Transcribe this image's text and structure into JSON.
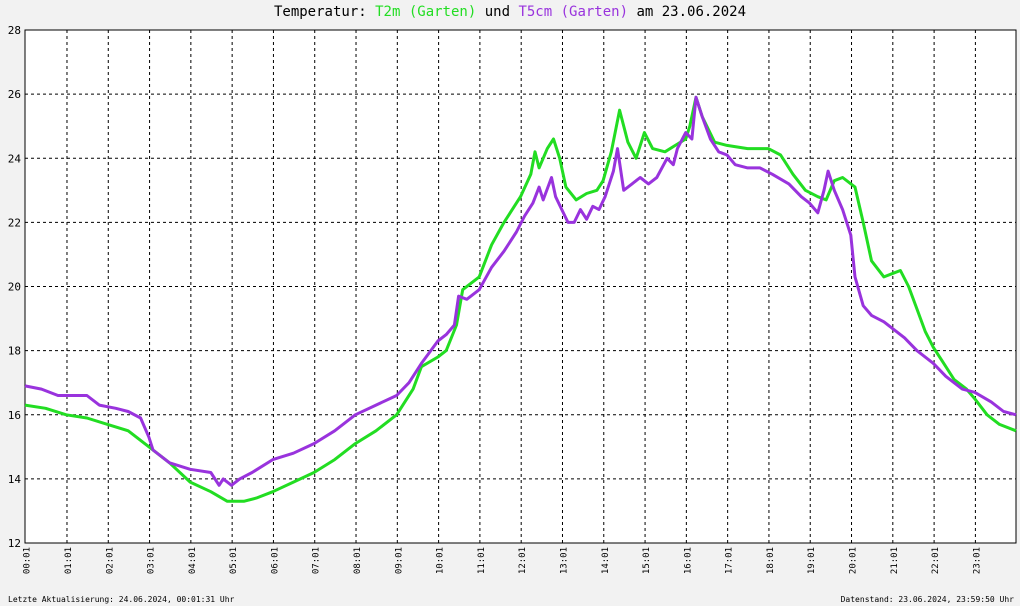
{
  "title": {
    "prefix": "Temperatur: ",
    "series1": "T2m (Garten)",
    "mid": " und ",
    "series2": "T5cm (Garten)",
    "suffix": " am 23.06.2024"
  },
  "footer": {
    "left": "Letzte Aktualisierung: 24.06.2024, 00:01:31 Uhr",
    "right": "Datenstand: 23.06.2024, 23:59:50 Uhr"
  },
  "colors": {
    "t2m": "#22dd22",
    "t5cm": "#9933dd",
    "grid": "#000000",
    "background": "#ffffff"
  },
  "chart_data": {
    "type": "line",
    "title": "Temperatur: T2m (Garten) und T5cm (Garten) am 23.06.2024",
    "xlim": [
      0,
      24
    ],
    "ylim": [
      12,
      28
    ],
    "y_ticks": [
      12,
      14,
      16,
      18,
      20,
      22,
      24,
      26,
      28
    ],
    "x_ticks": [
      0.0167,
      1.0167,
      2.0167,
      3.0167,
      4.0167,
      5.0167,
      6.0167,
      7.0167,
      8.0167,
      9.0167,
      10.0167,
      11.0167,
      12.0167,
      13.0167,
      14.0167,
      15.0167,
      16.0167,
      17.0167,
      18.0167,
      19.0167,
      20.0167,
      21.0167,
      22.0167,
      23.0167
    ],
    "x_tick_labels": [
      "00:01",
      "01:01",
      "02:01",
      "03:01",
      "04:01",
      "05:01",
      "06:01",
      "07:01",
      "08:01",
      "09:01",
      "10:01",
      "11:01",
      "12:01",
      "13:01",
      "14:01",
      "15:01",
      "16:01",
      "17:01",
      "18:01",
      "19:01",
      "20:01",
      "21:01",
      "22:01",
      "23:01"
    ],
    "grid": true,
    "series": [
      {
        "name": "T2m (Garten)",
        "color": "#22dd22",
        "points": [
          [
            0.0,
            16.3
          ],
          [
            0.5,
            16.2
          ],
          [
            1.0,
            16.0
          ],
          [
            1.5,
            15.9
          ],
          [
            2.0,
            15.7
          ],
          [
            2.5,
            15.5
          ],
          [
            3.0,
            15.0
          ],
          [
            3.5,
            14.5
          ],
          [
            4.0,
            13.9
          ],
          [
            4.5,
            13.6
          ],
          [
            4.9,
            13.3
          ],
          [
            5.3,
            13.3
          ],
          [
            5.6,
            13.4
          ],
          [
            6.0,
            13.6
          ],
          [
            6.5,
            13.9
          ],
          [
            7.0,
            14.2
          ],
          [
            7.5,
            14.6
          ],
          [
            8.0,
            15.1
          ],
          [
            8.5,
            15.5
          ],
          [
            9.0,
            16.0
          ],
          [
            9.4,
            16.8
          ],
          [
            9.6,
            17.5
          ],
          [
            10.0,
            17.8
          ],
          [
            10.2,
            18.0
          ],
          [
            10.45,
            18.8
          ],
          [
            10.6,
            19.9
          ],
          [
            11.0,
            20.3
          ],
          [
            11.3,
            21.3
          ],
          [
            11.6,
            22.0
          ],
          [
            12.0,
            22.8
          ],
          [
            12.25,
            23.5
          ],
          [
            12.35,
            24.2
          ],
          [
            12.45,
            23.7
          ],
          [
            12.65,
            24.3
          ],
          [
            12.8,
            24.6
          ],
          [
            12.95,
            24.0
          ],
          [
            13.1,
            23.1
          ],
          [
            13.35,
            22.7
          ],
          [
            13.6,
            22.9
          ],
          [
            13.85,
            23.0
          ],
          [
            14.0,
            23.3
          ],
          [
            14.2,
            24.2
          ],
          [
            14.4,
            25.5
          ],
          [
            14.6,
            24.5
          ],
          [
            14.8,
            24.0
          ],
          [
            15.0,
            24.8
          ],
          [
            15.2,
            24.3
          ],
          [
            15.5,
            24.2
          ],
          [
            15.75,
            24.4
          ],
          [
            16.0,
            24.6
          ],
          [
            16.1,
            25.0
          ],
          [
            16.25,
            25.9
          ],
          [
            16.4,
            25.3
          ],
          [
            16.7,
            24.5
          ],
          [
            17.0,
            24.4
          ],
          [
            17.5,
            24.3
          ],
          [
            18.0,
            24.3
          ],
          [
            18.3,
            24.1
          ],
          [
            18.6,
            23.5
          ],
          [
            18.9,
            23.0
          ],
          [
            19.2,
            22.8
          ],
          [
            19.4,
            22.7
          ],
          [
            19.6,
            23.3
          ],
          [
            19.8,
            23.4
          ],
          [
            20.1,
            23.1
          ],
          [
            20.3,
            22.0
          ],
          [
            20.5,
            20.8
          ],
          [
            20.8,
            20.3
          ],
          [
            21.0,
            20.4
          ],
          [
            21.2,
            20.5
          ],
          [
            21.4,
            20.0
          ],
          [
            21.6,
            19.3
          ],
          [
            21.8,
            18.6
          ],
          [
            22.0,
            18.1
          ],
          [
            22.2,
            17.7
          ],
          [
            22.5,
            17.1
          ],
          [
            22.8,
            16.8
          ],
          [
            23.0,
            16.5
          ],
          [
            23.3,
            16.0
          ],
          [
            23.6,
            15.7
          ],
          [
            24.0,
            15.5
          ]
        ]
      },
      {
        "name": "T5cm (Garten)",
        "color": "#9933dd",
        "points": [
          [
            0.0,
            16.9
          ],
          [
            0.4,
            16.8
          ],
          [
            0.8,
            16.6
          ],
          [
            1.2,
            16.6
          ],
          [
            1.5,
            16.6
          ],
          [
            1.8,
            16.3
          ],
          [
            2.2,
            16.2
          ],
          [
            2.5,
            16.1
          ],
          [
            2.8,
            15.9
          ],
          [
            3.0,
            15.3
          ],
          [
            3.1,
            14.9
          ],
          [
            3.5,
            14.5
          ],
          [
            4.0,
            14.3
          ],
          [
            4.5,
            14.2
          ],
          [
            4.7,
            13.8
          ],
          [
            4.8,
            14.0
          ],
          [
            5.0,
            13.8
          ],
          [
            5.2,
            14.0
          ],
          [
            5.5,
            14.2
          ],
          [
            6.0,
            14.6
          ],
          [
            6.5,
            14.8
          ],
          [
            7.0,
            15.1
          ],
          [
            7.5,
            15.5
          ],
          [
            8.0,
            16.0
          ],
          [
            8.5,
            16.3
          ],
          [
            9.0,
            16.6
          ],
          [
            9.3,
            17.0
          ],
          [
            9.6,
            17.6
          ],
          [
            10.0,
            18.3
          ],
          [
            10.2,
            18.5
          ],
          [
            10.4,
            18.8
          ],
          [
            10.5,
            19.7
          ],
          [
            10.7,
            19.6
          ],
          [
            11.0,
            19.9
          ],
          [
            11.3,
            20.6
          ],
          [
            11.6,
            21.1
          ],
          [
            11.9,
            21.7
          ],
          [
            12.1,
            22.2
          ],
          [
            12.3,
            22.6
          ],
          [
            12.45,
            23.1
          ],
          [
            12.55,
            22.7
          ],
          [
            12.75,
            23.4
          ],
          [
            12.85,
            22.8
          ],
          [
            13.0,
            22.4
          ],
          [
            13.15,
            22.0
          ],
          [
            13.3,
            22.0
          ],
          [
            13.45,
            22.4
          ],
          [
            13.6,
            22.1
          ],
          [
            13.75,
            22.5
          ],
          [
            13.9,
            22.4
          ],
          [
            14.05,
            22.8
          ],
          [
            14.25,
            23.6
          ],
          [
            14.35,
            24.3
          ],
          [
            14.5,
            23.0
          ],
          [
            14.7,
            23.2
          ],
          [
            14.9,
            23.4
          ],
          [
            15.1,
            23.2
          ],
          [
            15.3,
            23.4
          ],
          [
            15.55,
            24.0
          ],
          [
            15.7,
            23.8
          ],
          [
            15.8,
            24.3
          ],
          [
            16.0,
            24.8
          ],
          [
            16.15,
            24.6
          ],
          [
            16.25,
            25.9
          ],
          [
            16.4,
            25.3
          ],
          [
            16.6,
            24.6
          ],
          [
            16.8,
            24.2
          ],
          [
            17.0,
            24.1
          ],
          [
            17.2,
            23.8
          ],
          [
            17.5,
            23.7
          ],
          [
            17.8,
            23.7
          ],
          [
            18.1,
            23.5
          ],
          [
            18.5,
            23.2
          ],
          [
            18.8,
            22.8
          ],
          [
            19.0,
            22.6
          ],
          [
            19.2,
            22.3
          ],
          [
            19.35,
            23.0
          ],
          [
            19.45,
            23.6
          ],
          [
            19.6,
            23.0
          ],
          [
            19.8,
            22.4
          ],
          [
            20.0,
            21.6
          ],
          [
            20.1,
            20.3
          ],
          [
            20.3,
            19.4
          ],
          [
            20.5,
            19.1
          ],
          [
            20.8,
            18.9
          ],
          [
            21.0,
            18.7
          ],
          [
            21.3,
            18.4
          ],
          [
            21.6,
            18.0
          ],
          [
            22.0,
            17.6
          ],
          [
            22.3,
            17.2
          ],
          [
            22.7,
            16.8
          ],
          [
            23.0,
            16.7
          ],
          [
            23.4,
            16.4
          ],
          [
            23.7,
            16.1
          ],
          [
            24.0,
            16.0
          ]
        ]
      }
    ]
  }
}
